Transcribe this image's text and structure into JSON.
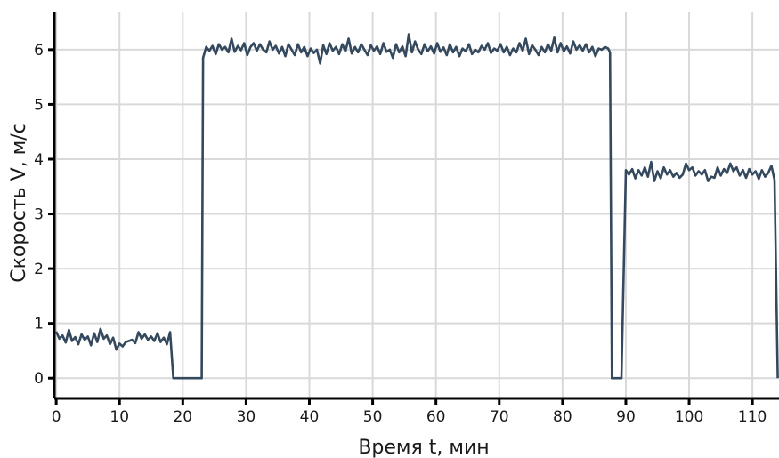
{
  "chart_data": {
    "type": "line",
    "title": "",
    "xlabel": "Время t, мин",
    "ylabel": "Скорость V, м/с",
    "xlim": [
      -0.3,
      114.2
    ],
    "ylim": [
      -0.37,
      6.68
    ],
    "xticks": [
      0,
      10,
      20,
      30,
      40,
      50,
      60,
      70,
      80,
      90,
      100,
      110
    ],
    "yticks": [
      0,
      1,
      2,
      3,
      4,
      5,
      6
    ],
    "grid": true,
    "legend": "none",
    "series": [
      {
        "color": "#34495e",
        "points": [
          [
            0,
            0.85
          ],
          [
            0.5,
            0.72
          ],
          [
            1,
            0.78
          ],
          [
            1.5,
            0.65
          ],
          [
            2,
            0.88
          ],
          [
            2.5,
            0.68
          ],
          [
            3,
            0.75
          ],
          [
            3.5,
            0.62
          ],
          [
            4,
            0.8
          ],
          [
            4.5,
            0.7
          ],
          [
            5,
            0.76
          ],
          [
            5.5,
            0.6
          ],
          [
            6,
            0.82
          ],
          [
            6.5,
            0.66
          ],
          [
            7,
            0.9
          ],
          [
            7.5,
            0.72
          ],
          [
            8,
            0.78
          ],
          [
            8.5,
            0.62
          ],
          [
            9,
            0.74
          ],
          [
            9.5,
            0.52
          ],
          [
            10,
            0.63
          ],
          [
            10.5,
            0.58
          ],
          [
            11,
            0.66
          ],
          [
            11.5,
            0.68
          ],
          [
            12,
            0.7
          ],
          [
            12.5,
            0.64
          ],
          [
            13,
            0.84
          ],
          [
            13.5,
            0.72
          ],
          [
            14,
            0.8
          ],
          [
            14.5,
            0.7
          ],
          [
            15,
            0.76
          ],
          [
            15.5,
            0.68
          ],
          [
            16,
            0.82
          ],
          [
            16.5,
            0.66
          ],
          [
            17,
            0.74
          ],
          [
            17.5,
            0.62
          ],
          [
            18,
            0.84
          ],
          [
            18.5,
            0.0
          ],
          [
            19,
            0.0
          ],
          [
            20,
            0.0
          ],
          [
            21,
            0.0
          ],
          [
            22,
            0.0
          ],
          [
            23,
            0.0
          ],
          [
            23.2,
            5.85
          ],
          [
            23.7,
            6.05
          ],
          [
            24.2,
            5.98
          ],
          [
            24.7,
            6.07
          ],
          [
            25.2,
            5.92
          ],
          [
            25.7,
            6.1
          ],
          [
            26.2,
            6.0
          ],
          [
            26.7,
            6.05
          ],
          [
            27.2,
            5.95
          ],
          [
            27.7,
            6.2
          ],
          [
            28.2,
            5.96
          ],
          [
            28.7,
            6.07
          ],
          [
            29.2,
            5.99
          ],
          [
            29.7,
            6.12
          ],
          [
            30.2,
            5.9
          ],
          [
            30.7,
            6.05
          ],
          [
            31.2,
            6.12
          ],
          [
            31.7,
            5.98
          ],
          [
            32.2,
            6.1
          ],
          [
            32.7,
            6.0
          ],
          [
            33.2,
            5.95
          ],
          [
            33.7,
            6.15
          ],
          [
            34.2,
            6.0
          ],
          [
            34.7,
            6.07
          ],
          [
            35.2,
            5.93
          ],
          [
            35.7,
            6.05
          ],
          [
            36.2,
            5.88
          ],
          [
            36.7,
            6.1
          ],
          [
            37.2,
            6.0
          ],
          [
            37.7,
            5.9
          ],
          [
            38.2,
            6.1
          ],
          [
            38.7,
            5.95
          ],
          [
            39.2,
            6.05
          ],
          [
            39.7,
            5.88
          ],
          [
            40.2,
            6.02
          ],
          [
            40.7,
            5.94
          ],
          [
            41.2,
            6.0
          ],
          [
            41.7,
            5.75
          ],
          [
            42.2,
            6.08
          ],
          [
            42.7,
            5.92
          ],
          [
            43.2,
            6.12
          ],
          [
            43.7,
            5.98
          ],
          [
            44.2,
            6.05
          ],
          [
            44.7,
            5.92
          ],
          [
            45.2,
            6.1
          ],
          [
            45.7,
            5.97
          ],
          [
            46.2,
            6.2
          ],
          [
            46.7,
            5.93
          ],
          [
            47.2,
            6.05
          ],
          [
            47.7,
            5.95
          ],
          [
            48.2,
            6.1
          ],
          [
            48.7,
            6.0
          ],
          [
            49.2,
            5.9
          ],
          [
            49.7,
            6.08
          ],
          [
            50.2,
            5.98
          ],
          [
            50.7,
            6.06
          ],
          [
            51.2,
            5.92
          ],
          [
            51.7,
            6.12
          ],
          [
            52.2,
            5.96
          ],
          [
            52.7,
            6.0
          ],
          [
            53.2,
            5.85
          ],
          [
            53.7,
            6.1
          ],
          [
            54.2,
            5.95
          ],
          [
            54.7,
            6.06
          ],
          [
            55.2,
            5.88
          ],
          [
            55.7,
            6.28
          ],
          [
            56.2,
            5.95
          ],
          [
            56.7,
            6.15
          ],
          [
            57.2,
            6.0
          ],
          [
            57.7,
            5.92
          ],
          [
            58.2,
            6.1
          ],
          [
            58.7,
            5.97
          ],
          [
            59.2,
            6.06
          ],
          [
            59.7,
            5.93
          ],
          [
            60.2,
            6.12
          ],
          [
            60.7,
            5.96
          ],
          [
            61.2,
            6.04
          ],
          [
            61.7,
            5.9
          ],
          [
            62.2,
            6.1
          ],
          [
            62.7,
            5.95
          ],
          [
            63.2,
            6.05
          ],
          [
            63.7,
            5.88
          ],
          [
            64.2,
            6.02
          ],
          [
            64.7,
            5.97
          ],
          [
            65.2,
            6.1
          ],
          [
            65.7,
            5.92
          ],
          [
            66.2,
            6.0
          ],
          [
            66.7,
            5.95
          ],
          [
            67.2,
            6.07
          ],
          [
            67.7,
            6.0
          ],
          [
            68.2,
            6.12
          ],
          [
            68.7,
            5.94
          ],
          [
            69.2,
            6.02
          ],
          [
            69.7,
            5.98
          ],
          [
            70.2,
            6.1
          ],
          [
            70.7,
            5.95
          ],
          [
            71.2,
            6.05
          ],
          [
            71.7,
            5.9
          ],
          [
            72.2,
            6.02
          ],
          [
            72.7,
            5.95
          ],
          [
            73.2,
            6.12
          ],
          [
            73.7,
            5.98
          ],
          [
            74.2,
            6.2
          ],
          [
            74.7,
            5.92
          ],
          [
            75.2,
            6.08
          ],
          [
            75.7,
            6.0
          ],
          [
            76.2,
            5.9
          ],
          [
            76.7,
            6.05
          ],
          [
            77.2,
            5.95
          ],
          [
            77.7,
            6.1
          ],
          [
            78.2,
            5.98
          ],
          [
            78.7,
            6.22
          ],
          [
            79.2,
            5.95
          ],
          [
            79.7,
            6.12
          ],
          [
            80.2,
            5.97
          ],
          [
            80.7,
            6.06
          ],
          [
            81.2,
            5.93
          ],
          [
            81.7,
            6.15
          ],
          [
            82.2,
            6.0
          ],
          [
            82.7,
            6.08
          ],
          [
            83.2,
            5.98
          ],
          [
            83.7,
            6.1
          ],
          [
            84.2,
            5.95
          ],
          [
            84.7,
            6.05
          ],
          [
            85.2,
            5.88
          ],
          [
            85.7,
            6.02
          ],
          [
            86.2,
            6.0
          ],
          [
            86.7,
            6.05
          ],
          [
            87.2,
            6.02
          ],
          [
            87.5,
            5.95
          ],
          [
            87.8,
            0.0
          ],
          [
            88.5,
            0.0
          ],
          [
            89.3,
            0.0
          ],
          [
            90,
            3.8
          ],
          [
            90.5,
            3.72
          ],
          [
            91,
            3.82
          ],
          [
            91.5,
            3.65
          ],
          [
            92,
            3.8
          ],
          [
            92.5,
            3.7
          ],
          [
            93,
            3.85
          ],
          [
            93.5,
            3.68
          ],
          [
            94,
            3.95
          ],
          [
            94.5,
            3.6
          ],
          [
            95,
            3.78
          ],
          [
            95.5,
            3.65
          ],
          [
            96,
            3.85
          ],
          [
            96.5,
            3.72
          ],
          [
            97,
            3.8
          ],
          [
            97.5,
            3.68
          ],
          [
            98,
            3.75
          ],
          [
            98.5,
            3.66
          ],
          [
            99,
            3.72
          ],
          [
            99.5,
            3.92
          ],
          [
            100,
            3.8
          ],
          [
            100.5,
            3.85
          ],
          [
            101,
            3.7
          ],
          [
            101.5,
            3.78
          ],
          [
            102,
            3.72
          ],
          [
            102.5,
            3.8
          ],
          [
            103,
            3.6
          ],
          [
            103.5,
            3.68
          ],
          [
            104,
            3.66
          ],
          [
            104.5,
            3.85
          ],
          [
            105,
            3.7
          ],
          [
            105.5,
            3.82
          ],
          [
            106,
            3.75
          ],
          [
            106.5,
            3.92
          ],
          [
            107,
            3.78
          ],
          [
            107.5,
            3.85
          ],
          [
            108,
            3.7
          ],
          [
            108.5,
            3.8
          ],
          [
            109,
            3.66
          ],
          [
            109.5,
            3.82
          ],
          [
            110,
            3.72
          ],
          [
            110.5,
            3.78
          ],
          [
            111,
            3.64
          ],
          [
            111.5,
            3.8
          ],
          [
            112,
            3.68
          ],
          [
            112.5,
            3.75
          ],
          [
            113,
            3.88
          ],
          [
            113.5,
            3.62
          ],
          [
            114,
            0.0
          ]
        ]
      }
    ]
  }
}
